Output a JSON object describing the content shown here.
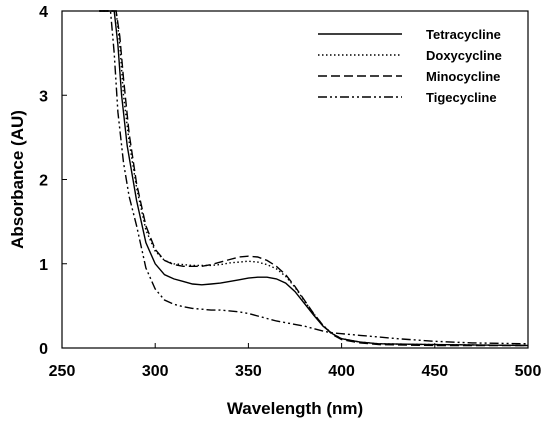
{
  "chart_data": {
    "type": "line",
    "title": "",
    "xlabel": "Wavelength (nm)",
    "ylabel": "Absorbance (AU)",
    "xlim": [
      250,
      500
    ],
    "ylim": [
      0,
      4
    ],
    "xticks": [
      250,
      300,
      350,
      400,
      450,
      500
    ],
    "yticks": [
      0,
      1,
      2,
      3,
      4
    ],
    "grid": false,
    "legend_position": "top-right",
    "series": [
      {
        "name": "Tetracycline",
        "dash": "solid",
        "points": [
          [
            270,
            4.0
          ],
          [
            278,
            4.0
          ],
          [
            280,
            3.6
          ],
          [
            282,
            3.0
          ],
          [
            285,
            2.4
          ],
          [
            290,
            1.75
          ],
          [
            295,
            1.25
          ],
          [
            300,
            1.0
          ],
          [
            305,
            0.87
          ],
          [
            310,
            0.82
          ],
          [
            315,
            0.79
          ],
          [
            320,
            0.76
          ],
          [
            325,
            0.75
          ],
          [
            330,
            0.76
          ],
          [
            335,
            0.77
          ],
          [
            340,
            0.79
          ],
          [
            345,
            0.81
          ],
          [
            350,
            0.83
          ],
          [
            355,
            0.84
          ],
          [
            360,
            0.84
          ],
          [
            365,
            0.82
          ],
          [
            370,
            0.77
          ],
          [
            375,
            0.67
          ],
          [
            380,
            0.53
          ],
          [
            385,
            0.39
          ],
          [
            390,
            0.26
          ],
          [
            395,
            0.17
          ],
          [
            400,
            0.11
          ],
          [
            410,
            0.07
          ],
          [
            420,
            0.05
          ],
          [
            450,
            0.04
          ],
          [
            500,
            0.03
          ]
        ]
      },
      {
        "name": "Doxycycline",
        "dash": "dotted",
        "points": [
          [
            270,
            4.0
          ],
          [
            279,
            4.0
          ],
          [
            281,
            3.6
          ],
          [
            283,
            3.0
          ],
          [
            286,
            2.45
          ],
          [
            290,
            1.9
          ],
          [
            295,
            1.4
          ],
          [
            300,
            1.15
          ],
          [
            305,
            1.04
          ],
          [
            310,
            1.0
          ],
          [
            315,
            0.99
          ],
          [
            320,
            0.98
          ],
          [
            325,
            0.98
          ],
          [
            330,
            0.98
          ],
          [
            335,
            0.99
          ],
          [
            340,
            1.01
          ],
          [
            345,
            1.02
          ],
          [
            350,
            1.03
          ],
          [
            355,
            1.02
          ],
          [
            360,
            0.99
          ],
          [
            365,
            0.94
          ],
          [
            370,
            0.85
          ],
          [
            375,
            0.72
          ],
          [
            380,
            0.56
          ],
          [
            385,
            0.41
          ],
          [
            390,
            0.27
          ],
          [
            395,
            0.17
          ],
          [
            400,
            0.11
          ],
          [
            410,
            0.07
          ],
          [
            420,
            0.05
          ],
          [
            450,
            0.04
          ],
          [
            500,
            0.03
          ]
        ]
      },
      {
        "name": "Minocycline",
        "dash": "dashed",
        "points": [
          [
            270,
            4.0
          ],
          [
            279,
            4.0
          ],
          [
            281,
            3.7
          ],
          [
            283,
            3.2
          ],
          [
            286,
            2.55
          ],
          [
            290,
            1.95
          ],
          [
            295,
            1.45
          ],
          [
            300,
            1.17
          ],
          [
            305,
            1.04
          ],
          [
            310,
            0.99
          ],
          [
            315,
            0.97
          ],
          [
            320,
            0.97
          ],
          [
            325,
            0.97
          ],
          [
            330,
            0.99
          ],
          [
            335,
            1.02
          ],
          [
            340,
            1.05
          ],
          [
            345,
            1.08
          ],
          [
            350,
            1.09
          ],
          [
            355,
            1.08
          ],
          [
            360,
            1.04
          ],
          [
            365,
            0.97
          ],
          [
            370,
            0.87
          ],
          [
            375,
            0.73
          ],
          [
            380,
            0.57
          ],
          [
            385,
            0.41
          ],
          [
            390,
            0.27
          ],
          [
            395,
            0.16
          ],
          [
            400,
            0.1
          ],
          [
            410,
            0.06
          ],
          [
            420,
            0.04
          ],
          [
            450,
            0.03
          ],
          [
            500,
            0.03
          ]
        ]
      },
      {
        "name": "Tigecycline",
        "dash": "dashdotdot",
        "points": [
          [
            270,
            4.0
          ],
          [
            276,
            4.0
          ],
          [
            278,
            3.5
          ],
          [
            280,
            2.8
          ],
          [
            283,
            2.2
          ],
          [
            286,
            1.8
          ],
          [
            290,
            1.45
          ],
          [
            295,
            0.95
          ],
          [
            300,
            0.7
          ],
          [
            305,
            0.57
          ],
          [
            310,
            0.52
          ],
          [
            315,
            0.49
          ],
          [
            320,
            0.47
          ],
          [
            325,
            0.46
          ],
          [
            330,
            0.45
          ],
          [
            335,
            0.45
          ],
          [
            340,
            0.44
          ],
          [
            345,
            0.43
          ],
          [
            350,
            0.41
          ],
          [
            355,
            0.38
          ],
          [
            360,
            0.35
          ],
          [
            365,
            0.32
          ],
          [
            370,
            0.3
          ],
          [
            375,
            0.28
          ],
          [
            380,
            0.26
          ],
          [
            385,
            0.23
          ],
          [
            390,
            0.2
          ],
          [
            395,
            0.18
          ],
          [
            400,
            0.17
          ],
          [
            410,
            0.15
          ],
          [
            420,
            0.13
          ],
          [
            430,
            0.11
          ],
          [
            450,
            0.08
          ],
          [
            470,
            0.06
          ],
          [
            500,
            0.05
          ]
        ]
      }
    ]
  }
}
